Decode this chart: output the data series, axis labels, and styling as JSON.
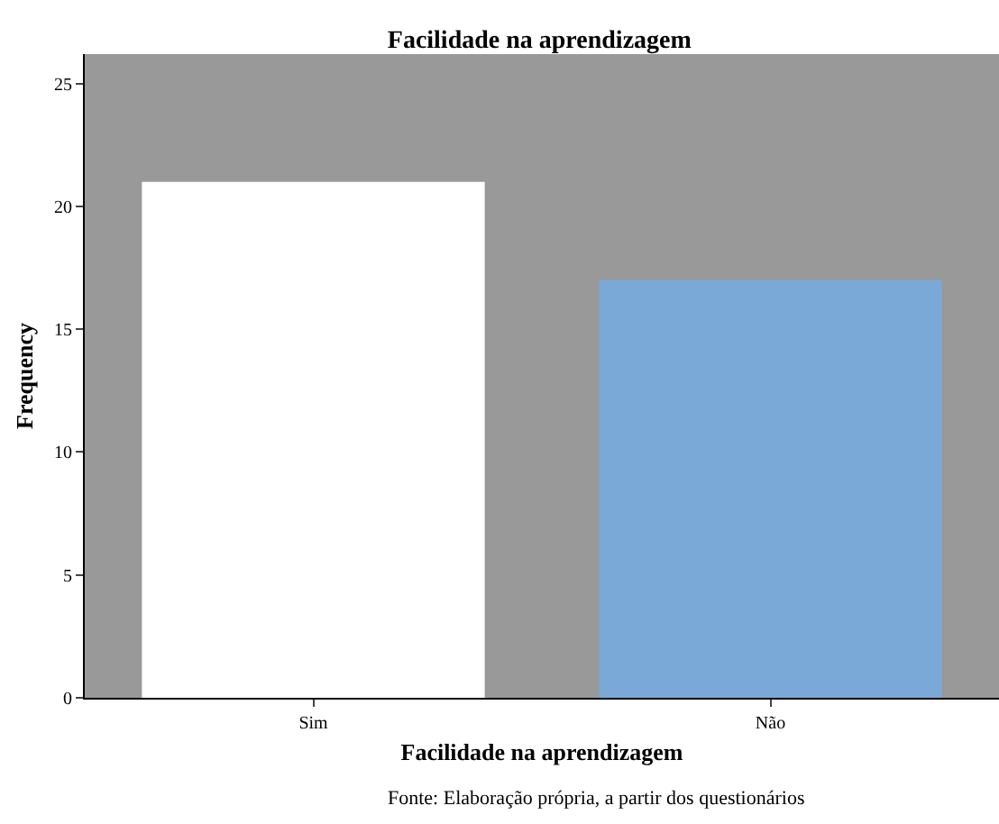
{
  "chart_data": {
    "type": "bar",
    "title": "Facilidade na aprendizagem",
    "xlabel": "Facilidade na aprendizagem",
    "ylabel": "Frequency",
    "categories": [
      "Sim",
      "Não"
    ],
    "values": [
      21,
      17
    ],
    "colors": [
      "#ffffff",
      "#7ba9d7"
    ],
    "ylim": [
      0,
      26.2
    ],
    "yticks": [
      0,
      5,
      10,
      15,
      20,
      25
    ],
    "grid": false,
    "annotations": [
      "Fonte: Elaboração própria, a partir dos questionários"
    ]
  }
}
